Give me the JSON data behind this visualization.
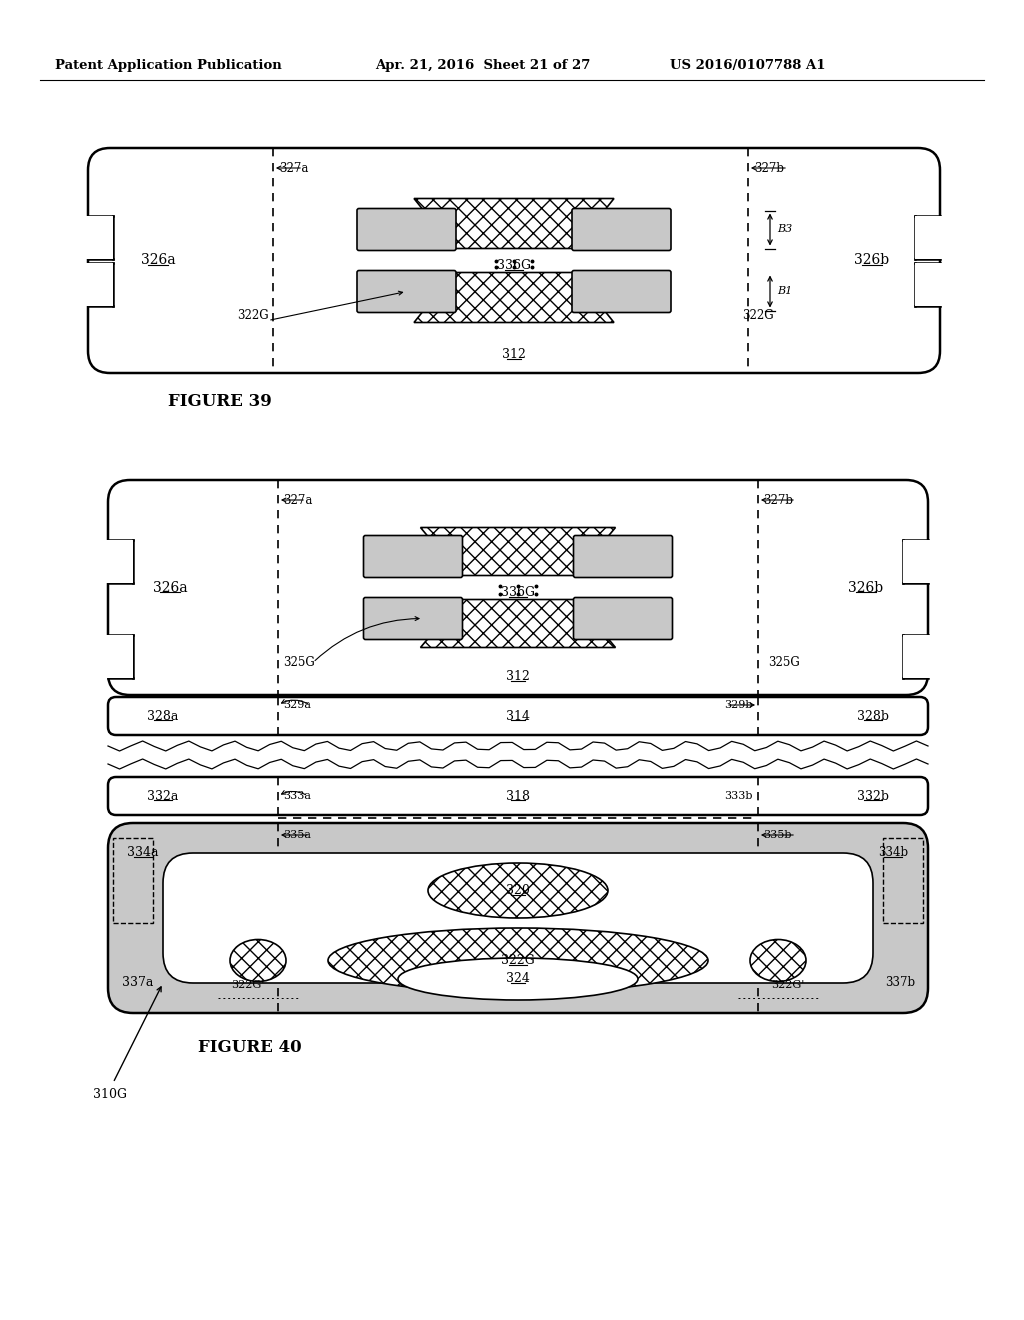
{
  "header_left": "Patent Application Publication",
  "header_mid": "Apr. 21, 2016  Sheet 21 of 27",
  "header_right": "US 2016/0107788 A1",
  "fig39_caption": "FIGURE 39",
  "fig40_caption": "FIGURE 40",
  "bg_color": "#ffffff",
  "line_color": "#000000",
  "stipple_fill": "#c8c8c8",
  "light_gray": "#d0d0d0"
}
